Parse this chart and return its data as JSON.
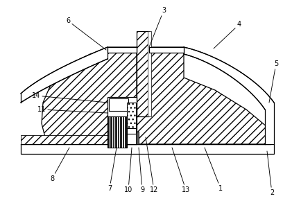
{
  "bg_color": "#ffffff",
  "line_color": "#000000",
  "figsize": [
    4.21,
    3.03
  ],
  "dpi": 100,
  "labels_data": [
    [
      "1",
      318,
      272,
      295,
      213
    ],
    [
      "2",
      392,
      278,
      385,
      218
    ],
    [
      "3",
      236,
      15,
      215,
      68
    ],
    [
      "4",
      345,
      35,
      308,
      70
    ],
    [
      "5",
      398,
      92,
      388,
      148
    ],
    [
      "6",
      98,
      30,
      153,
      72
    ],
    [
      "7",
      158,
      272,
      168,
      213
    ],
    [
      "8",
      75,
      258,
      100,
      213
    ],
    [
      "9",
      205,
      274,
      200,
      213
    ],
    [
      "10",
      185,
      274,
      190,
      213
    ],
    [
      "11",
      60,
      158,
      155,
      163
    ],
    [
      "12",
      222,
      274,
      210,
      198
    ],
    [
      "13",
      268,
      274,
      248,
      213
    ],
    [
      "14",
      52,
      138,
      155,
      148
    ]
  ]
}
